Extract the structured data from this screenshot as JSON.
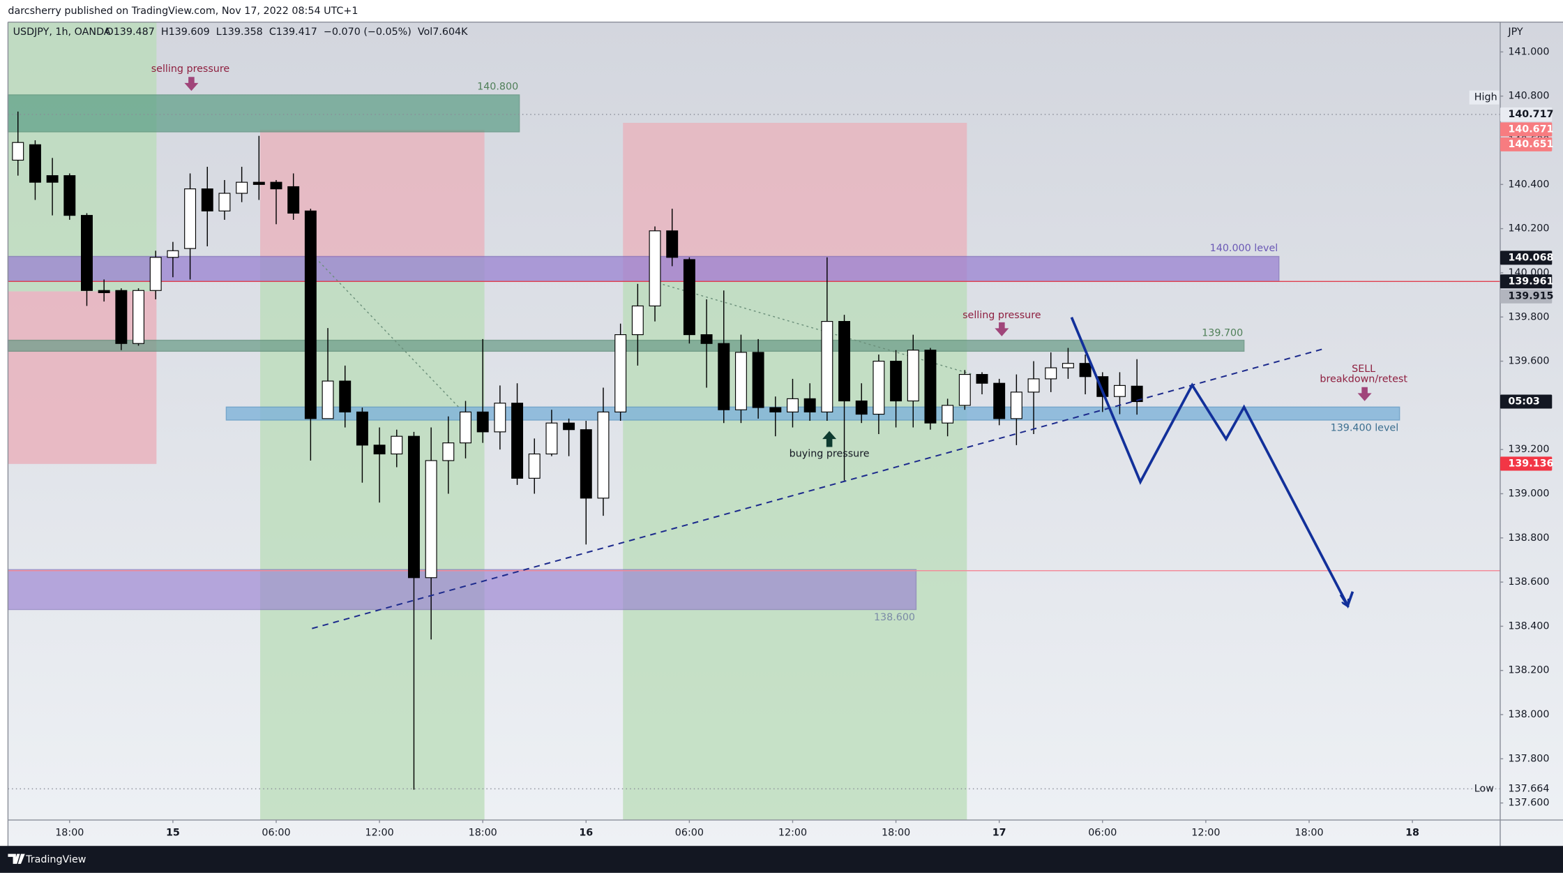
{
  "header": {
    "publisher": "darcsherry published on TradingView.com, Nov 17, 2022 08:54 UTC+1"
  },
  "footer": {
    "brand": "TradingView"
  },
  "chart_data": {
    "type": "candlestick",
    "symbol": "USDJPY, 1h, OANDA",
    "legend_values": "O139.487  H139.609  L139.358  C139.417  −0.070 (−0.05%)  Vol7.604K",
    "currency": "JPY",
    "up_color": "#ffffff",
    "down_color": "#000000",
    "wick_color": "#000000",
    "grid": false,
    "xlim": [
      -0.58,
      86.1
    ],
    "ylim": [
      137.523,
      141.135
    ],
    "xticks": [
      {
        "value": 3,
        "label": "18:00"
      },
      {
        "value": 9,
        "label": "15"
      },
      {
        "value": 15,
        "label": "06:00"
      },
      {
        "value": 21,
        "label": "12:00"
      },
      {
        "value": 27,
        "label": "18:00"
      },
      {
        "value": 33,
        "label": "16"
      },
      {
        "value": 39,
        "label": "06:00"
      },
      {
        "value": 45,
        "label": "12:00"
      },
      {
        "value": 51,
        "label": "18:00"
      },
      {
        "value": 57,
        "label": "17"
      },
      {
        "value": 63,
        "label": "06:00"
      },
      {
        "value": 69,
        "label": "12:00"
      },
      {
        "value": 75,
        "label": "18:00"
      },
      {
        "value": 81,
        "label": "18"
      }
    ],
    "yticks": [
      {
        "value": 137.6,
        "label": "137.600"
      },
      {
        "value": 137.8,
        "label": "137.800"
      },
      {
        "value": 138.0,
        "label": "138.000"
      },
      {
        "value": 138.2,
        "label": "138.200"
      },
      {
        "value": 138.4,
        "label": "138.400"
      },
      {
        "value": 138.6,
        "label": "138.600"
      },
      {
        "value": 138.8,
        "label": "138.800"
      },
      {
        "value": 139.0,
        "label": "139.000"
      },
      {
        "value": 139.2,
        "label": "139.200"
      },
      {
        "value": 139.4,
        "label": "139.400"
      },
      {
        "value": 139.6,
        "label": "139.600"
      },
      {
        "value": 139.8,
        "label": "139.800"
      },
      {
        "value": 140.0,
        "label": "140.000"
      },
      {
        "value": 140.2,
        "label": "140.200"
      },
      {
        "value": 140.4,
        "label": "140.400"
      },
      {
        "value": 140.6,
        "label": "140.600"
      },
      {
        "value": 140.8,
        "label": "140.800"
      },
      {
        "value": 141.0,
        "label": "141.000"
      }
    ],
    "open": [
      140.51,
      140.58,
      140.44,
      140.44,
      140.26,
      139.92,
      139.92,
      139.68,
      139.92,
      140.07,
      140.11,
      140.38,
      140.28,
      140.36,
      140.41,
      140.41,
      140.39,
      140.28,
      139.34,
      139.51,
      139.37,
      139.22,
      139.18,
      139.26,
      138.62,
      139.15,
      139.23,
      139.37,
      139.28,
      139.41,
      139.07,
      139.18,
      139.32,
      139.29,
      138.98,
      139.37,
      139.72,
      139.85,
      140.19,
      140.06,
      139.72,
      139.68,
      139.38,
      139.64,
      139.39,
      139.37,
      139.43,
      139.37,
      139.78,
      139.42,
      139.36,
      139.6,
      139.42,
      139.65,
      139.32,
      139.4,
      139.54,
      139.5,
      139.34,
      139.46,
      139.52,
      139.57,
      139.59,
      139.53,
      139.44,
      139.487
    ],
    "high": [
      140.73,
      140.6,
      140.52,
      140.45,
      140.27,
      139.97,
      139.93,
      139.93,
      140.1,
      140.14,
      140.45,
      140.48,
      140.42,
      140.48,
      140.62,
      140.42,
      140.45,
      140.29,
      139.75,
      139.58,
      139.39,
      139.3,
      139.29,
      139.28,
      139.3,
      139.35,
      139.42,
      139.7,
      139.49,
      139.5,
      139.25,
      139.38,
      139.34,
      139.33,
      139.48,
      139.77,
      139.95,
      140.21,
      140.29,
      140.07,
      139.88,
      139.92,
      139.72,
      139.7,
      139.44,
      139.52,
      139.5,
      140.07,
      139.81,
      139.5,
      139.63,
      139.65,
      139.72,
      139.66,
      139.43,
      139.56,
      139.55,
      139.52,
      139.54,
      139.6,
      139.64,
      139.66,
      139.63,
      139.55,
      139.55,
      139.609
    ],
    "low": [
      140.44,
      140.33,
      140.26,
      140.24,
      139.85,
      139.87,
      139.65,
      139.67,
      139.88,
      139.98,
      139.97,
      140.12,
      140.24,
      140.32,
      140.33,
      140.22,
      140.24,
      139.15,
      139.34,
      139.3,
      139.05,
      138.96,
      139.12,
      137.66,
      138.34,
      139.0,
      139.16,
      139.23,
      139.2,
      139.04,
      139.0,
      139.17,
      139.17,
      138.77,
      138.9,
      139.33,
      139.58,
      139.78,
      140.03,
      139.68,
      139.48,
      139.32,
      139.32,
      139.34,
      139.26,
      139.3,
      139.33,
      139.33,
      139.06,
      139.32,
      139.27,
      139.3,
      139.3,
      139.29,
      139.26,
      139.38,
      139.45,
      139.31,
      139.22,
      139.27,
      139.46,
      139.52,
      139.45,
      139.37,
      139.36,
      139.358
    ],
    "close": [
      140.59,
      140.41,
      140.41,
      140.26,
      139.92,
      139.91,
      139.68,
      139.92,
      140.07,
      140.1,
      140.38,
      140.28,
      140.36,
      140.41,
      140.4,
      140.38,
      140.27,
      139.34,
      139.51,
      139.37,
      139.22,
      139.18,
      139.26,
      138.62,
      139.15,
      139.23,
      139.37,
      139.28,
      139.41,
      139.07,
      139.18,
      139.32,
      139.29,
      138.98,
      139.37,
      139.72,
      139.85,
      140.19,
      140.07,
      139.72,
      139.68,
      139.38,
      139.64,
      139.39,
      139.37,
      139.43,
      139.37,
      139.78,
      139.42,
      139.36,
      139.6,
      139.42,
      139.65,
      139.32,
      139.4,
      139.54,
      139.5,
      139.34,
      139.46,
      139.52,
      139.57,
      139.59,
      139.53,
      139.44,
      139.49,
      139.417
    ],
    "price_markers": [
      {
        "value": 140.717,
        "label": "140.717",
        "tag": "High",
        "color": "#e9ecf2",
        "text_color": "#131722",
        "line": "dotted"
      },
      {
        "value": 140.671,
        "label": "140.671",
        "color": "#f77c80",
        "text_color": "#ffffff"
      },
      {
        "value": 140.651,
        "label": "140.651",
        "color": "#f77c80",
        "text_color": "#ffffff"
      },
      {
        "value": 140.068,
        "label": "140.068",
        "color": "#131722",
        "text_color": "#ffffff"
      },
      {
        "value": 139.961,
        "label": "139.961",
        "color": "#131722",
        "text_color": "#ffffff",
        "line": "solid"
      },
      {
        "value": 139.915,
        "label": "139.915",
        "color": "#b2b5be",
        "text_color": "#131722"
      },
      {
        "value": 139.417,
        "label": "05:03",
        "color": "#131722",
        "text_color": "#ffffff"
      },
      {
        "value": 139.136,
        "label": "139.136",
        "color": "#f23645",
        "text_color": "#ffffff"
      },
      {
        "value": 137.664,
        "label": "137.664",
        "tag": "Low",
        "text_color": "#131722",
        "line": "dotted"
      }
    ],
    "annotations": [
      "selling pressure",
      "140.800",
      "140.000 level",
      "139.700",
      "selling pressure",
      "SELL",
      "breakdown/retest",
      "139.400 level",
      "buying pressure",
      "138.600"
    ]
  }
}
